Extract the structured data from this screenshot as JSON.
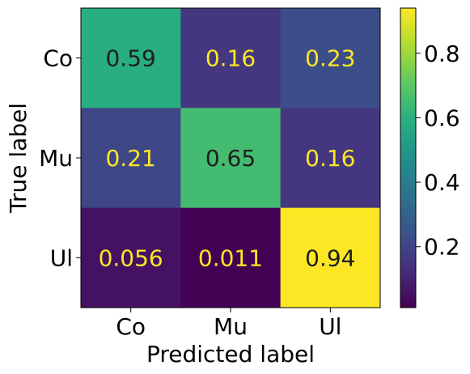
{
  "chart_data": {
    "type": "heatmap",
    "xlabel": "Predicted label",
    "ylabel": "True label",
    "x_categories": [
      "Co",
      "Mu",
      "Ul"
    ],
    "y_categories": [
      "Co",
      "Mu",
      "Ul"
    ],
    "values": [
      [
        0.59,
        0.16,
        0.23
      ],
      [
        0.21,
        0.65,
        0.16
      ],
      [
        0.056,
        0.011,
        0.94
      ]
    ],
    "value_labels": [
      [
        "0.59",
        "0.16",
        "0.23"
      ],
      [
        "0.21",
        "0.65",
        "0.16"
      ],
      [
        "0.056",
        "0.011",
        "0.94"
      ]
    ],
    "colormap": "viridis",
    "color_range": [
      0.011,
      0.94
    ],
    "colorbar": {
      "ticks": [
        0.2,
        0.4,
        0.6,
        0.8
      ],
      "tick_labels": [
        "0.2",
        "0.4",
        "0.6",
        "0.8"
      ],
      "placement": "right"
    },
    "grid": false
  }
}
